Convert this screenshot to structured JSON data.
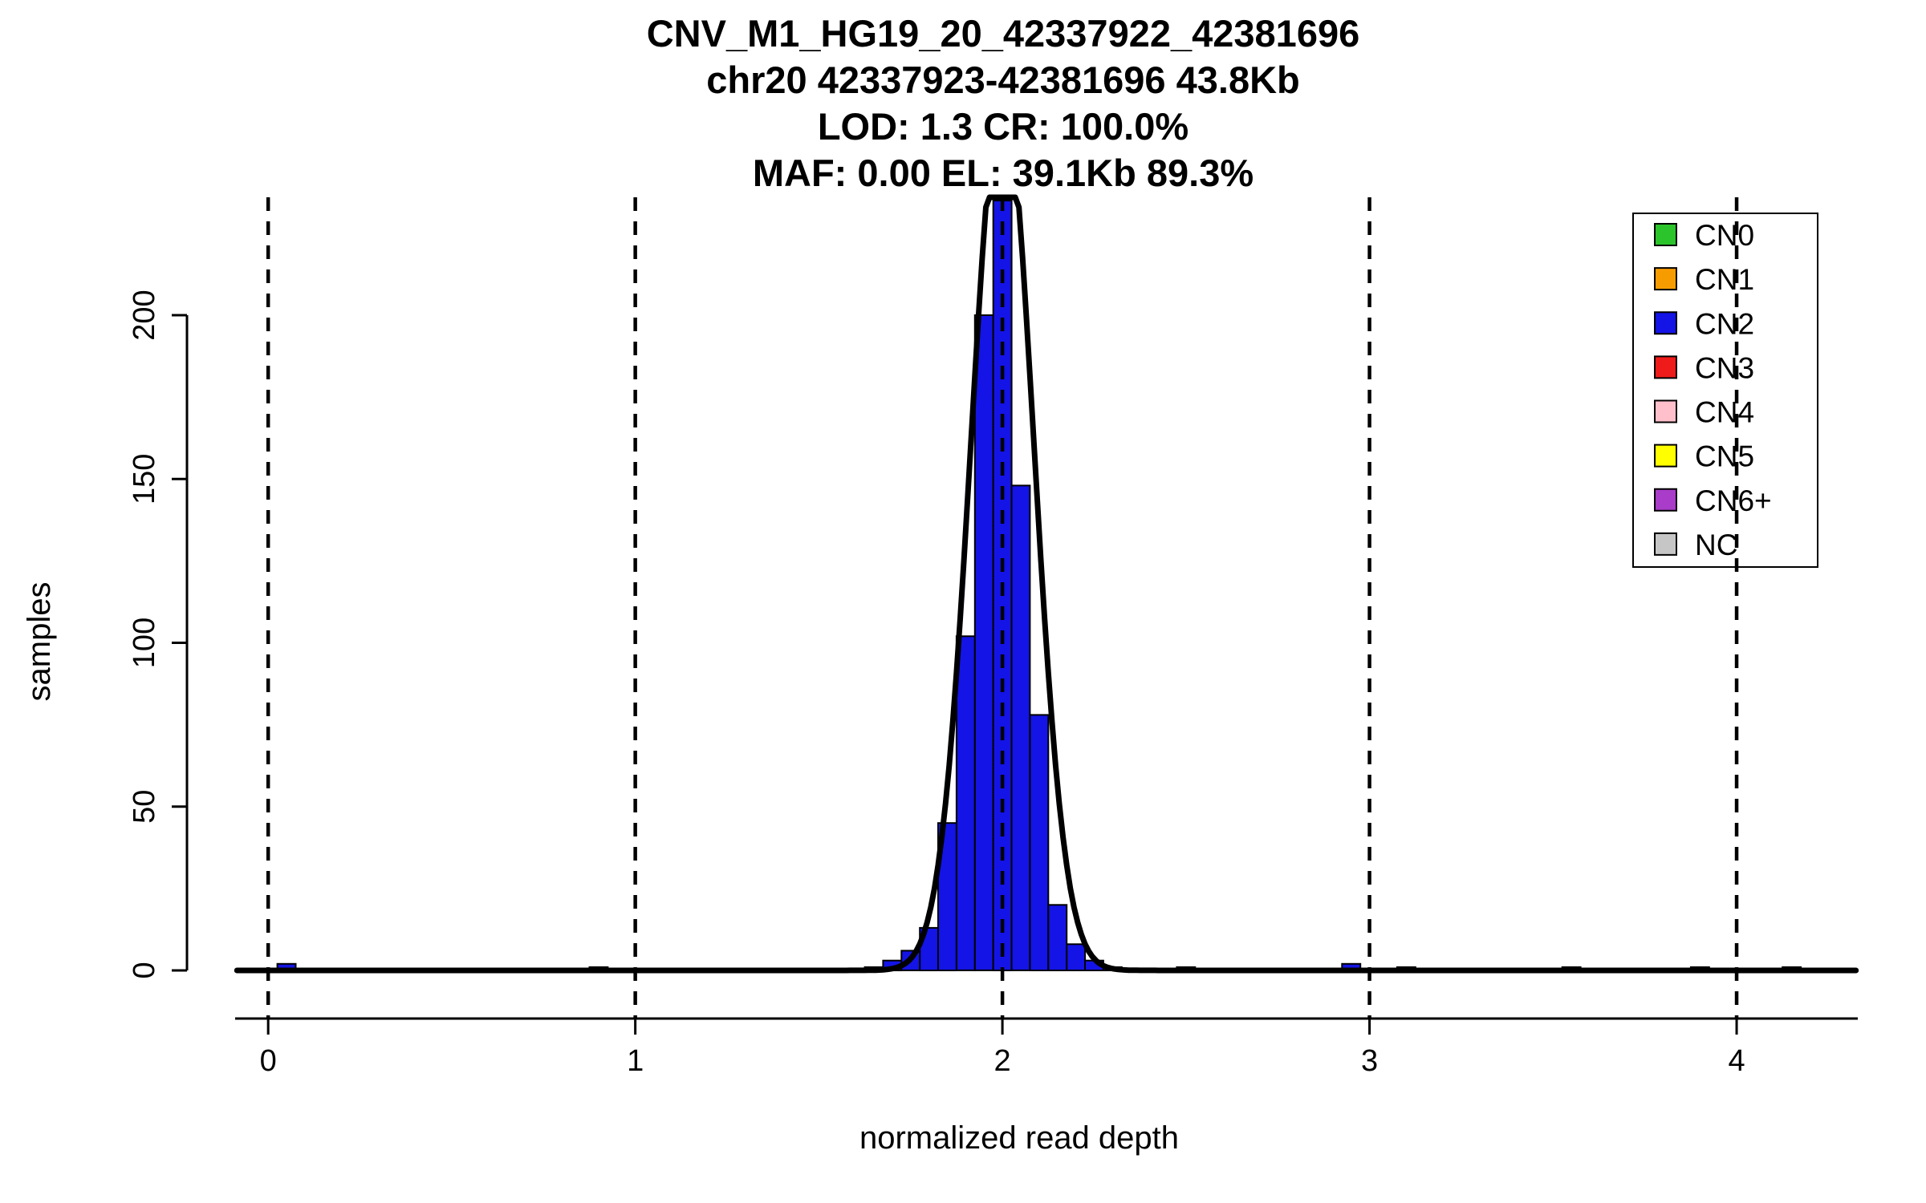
{
  "chart_data": {
    "type": "histogram",
    "title_lines": [
      "CNV_M1_HG19_20_42337922_42381696",
      "chr20 42337923-42381696 43.8Kb",
      "LOD: 1.3 CR: 100.0%",
      "MAF: 0.00 EL: 39.1Kb 89.3%"
    ],
    "xlabel": "normalized read depth",
    "ylabel": "samples",
    "xlim": [
      -0.09,
      4.33
    ],
    "ylim": [
      -14.7,
      236
    ],
    "x_ticks": [
      0,
      1,
      2,
      3,
      4
    ],
    "y_ticks": [
      0,
      50,
      100,
      150,
      200
    ],
    "dashed_vlines": [
      0,
      1,
      2,
      3,
      4
    ],
    "bin_width": 0.05,
    "bar_color": "#1414e6",
    "bars": [
      [
        0.025,
        2
      ],
      [
        0.875,
        1
      ],
      [
        1.625,
        1
      ],
      [
        1.675,
        3
      ],
      [
        1.725,
        6
      ],
      [
        1.775,
        13
      ],
      [
        1.825,
        45
      ],
      [
        1.875,
        102
      ],
      [
        1.925,
        200
      ],
      [
        1.975,
        235
      ],
      [
        2.025,
        148
      ],
      [
        2.075,
        78
      ],
      [
        2.125,
        20
      ],
      [
        2.175,
        8
      ],
      [
        2.225,
        3
      ],
      [
        2.275,
        1
      ],
      [
        2.475,
        1
      ],
      [
        2.925,
        2
      ],
      [
        3.075,
        1
      ],
      [
        3.525,
        1
      ],
      [
        3.875,
        1
      ],
      [
        4.125,
        1
      ]
    ],
    "curve": {
      "shape": "gaussian",
      "mean": 2.0,
      "sd": 0.085,
      "amplitude": 268,
      "clip": 236,
      "color": "#000000"
    },
    "legend": {
      "items": [
        {
          "label": "CN0",
          "color": "#2bc42b"
        },
        {
          "label": "CN1",
          "color": "#f79c00"
        },
        {
          "label": "CN2",
          "color": "#1414e6"
        },
        {
          "label": "CN3",
          "color": "#ef1a1a"
        },
        {
          "label": "CN4",
          "color": "#ffc0cb"
        },
        {
          "label": "CN5",
          "color": "#ffff00"
        },
        {
          "label": "CN6+",
          "color": "#a93cc9"
        },
        {
          "label": "NC",
          "color": "#c6c6c6"
        }
      ]
    }
  }
}
